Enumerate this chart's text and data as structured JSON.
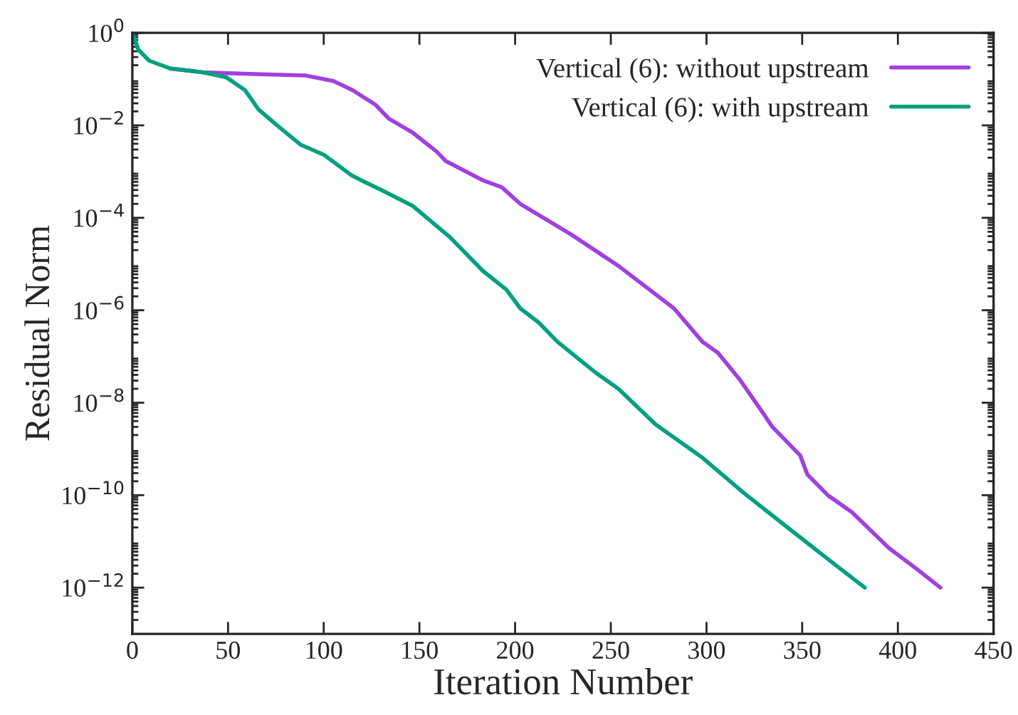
{
  "chart_data": {
    "type": "line",
    "xlabel": "Iteration Number",
    "ylabel": "Residual Norm",
    "log": "y",
    "xlim": [
      0,
      450
    ],
    "xticks": [
      0,
      50,
      100,
      150,
      200,
      250,
      300,
      350,
      400,
      450
    ],
    "ylim": [
      1e-13,
      1
    ],
    "yticks": [
      {
        "value": 1,
        "label": "10$^{0}$"
      },
      {
        "value": 0.01,
        "label": "10$^{−2}$"
      },
      {
        "value": 0.0001,
        "label": "10$^{−4}$"
      },
      {
        "value": 1e-06,
        "label": "10$^{−6}$"
      },
      {
        "value": 1e-08,
        "label": "10$^{−8}$"
      },
      {
        "value": 1e-10,
        "label": "10$^{−10}$"
      },
      {
        "value": 1e-12,
        "label": "10$^{−12}$"
      }
    ],
    "grid": false,
    "legend": "top right",
    "line_style": "solid",
    "marker": "none",
    "series": [
      {
        "name": "Vertical (6): without upstream",
        "color": "#a040e0",
        "x": [
          19.8,
          36.8,
          61,
          90.5,
          105,
          115,
          127,
          134,
          146.6,
          159,
          163.7,
          183,
          193,
          202.7,
          229.5,
          254,
          283,
          297.8,
          306,
          317.3,
          329.5,
          334.4,
          349,
          352.7,
          363.6,
          375.9,
          395.3,
          410,
          422.2
        ],
        "values": [
          0.17,
          0.14,
          0.13,
          0.12,
          0.091,
          0.058,
          0.028,
          0.014,
          0.0069,
          0.0027,
          0.0017,
          0.00065,
          0.00046,
          0.0002,
          4.3e-05,
          9.1e-06,
          1.1e-06,
          2.1e-07,
          1.2e-07,
          3.2e-08,
          6e-09,
          3e-09,
          7.2e-10,
          2.8e-10,
          9.8e-11,
          4.3e-11,
          7.2e-12,
          2.5e-12,
          1e-12
        ]
      },
      {
        "name": "Vertical (6): with upstream",
        "color": "#00a080",
        "x": [
          0,
          3.2,
          8.8,
          19.8,
          36.8,
          49,
          58.8,
          66,
          75.9,
          88,
          100.2,
          114.9,
          129.5,
          146.6,
          166,
          183,
          195.4,
          202.7,
          212.4,
          222,
          241.7,
          254,
          273.4,
          297.8,
          319.7,
          341.7,
          363.6,
          382.7
        ],
        "values": [
          1,
          0.43,
          0.25,
          0.17,
          0.14,
          0.11,
          0.058,
          0.022,
          0.0098,
          0.0038,
          0.0023,
          0.00081,
          0.00041,
          0.00018,
          3.8e-05,
          7.2e-06,
          2.8e-06,
          1.1e-06,
          5.4e-07,
          2.1e-07,
          4.6e-08,
          2e-08,
          3.4e-09,
          6.5e-10,
          1.1e-10,
          2.1e-11,
          4.1e-12,
          1e-12
        ]
      }
    ]
  }
}
